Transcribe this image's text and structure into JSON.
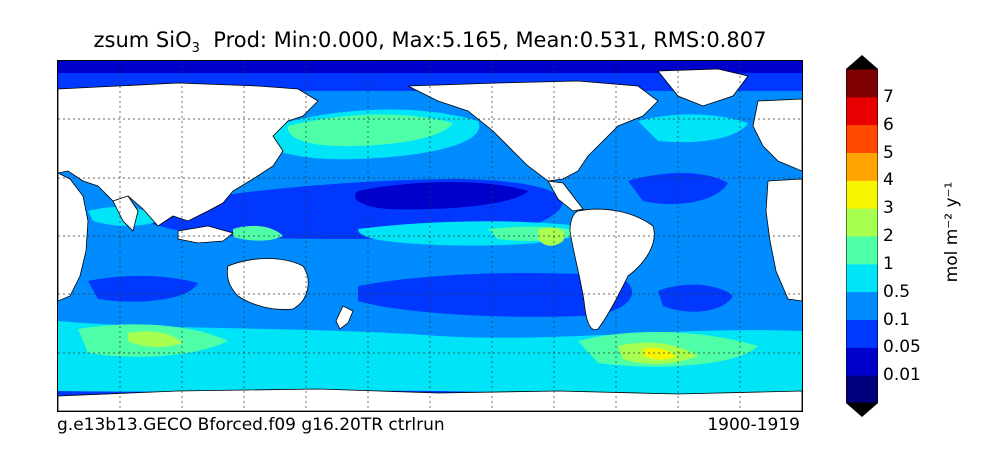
{
  "title": {
    "var_prefix": "zsum SiO",
    "var_sub": "3",
    "stats": "Prod: Min:0.000, Max:5.165, Mean:0.531, RMS:0.807"
  },
  "footer": {
    "run_name": "g.e13b13.GECO Bforced.f09 g16.20TR ctrlrun",
    "years": "1900-1919"
  },
  "colorbar": {
    "unit_label": "mol m⁻² y⁻¹",
    "ticks": [
      "7",
      "6",
      "5",
      "4",
      "3",
      "2",
      "1",
      "0.5",
      "0.1",
      "0.05",
      "0.01"
    ],
    "colors": [
      "#00007f",
      "#0000cd",
      "#0038ff",
      "#008cff",
      "#00e4f8",
      "#4fffa7",
      "#a7ff4f",
      "#f8f500",
      "#ffa300",
      "#ff4a00",
      "#e80000",
      "#7f0000"
    ],
    "extend": "both"
  },
  "map": {
    "projection": "cylindrical, Pacific-centered",
    "grid": "dotted",
    "ocean_base_color": "#008cff",
    "land_color": "#ffffff"
  }
}
